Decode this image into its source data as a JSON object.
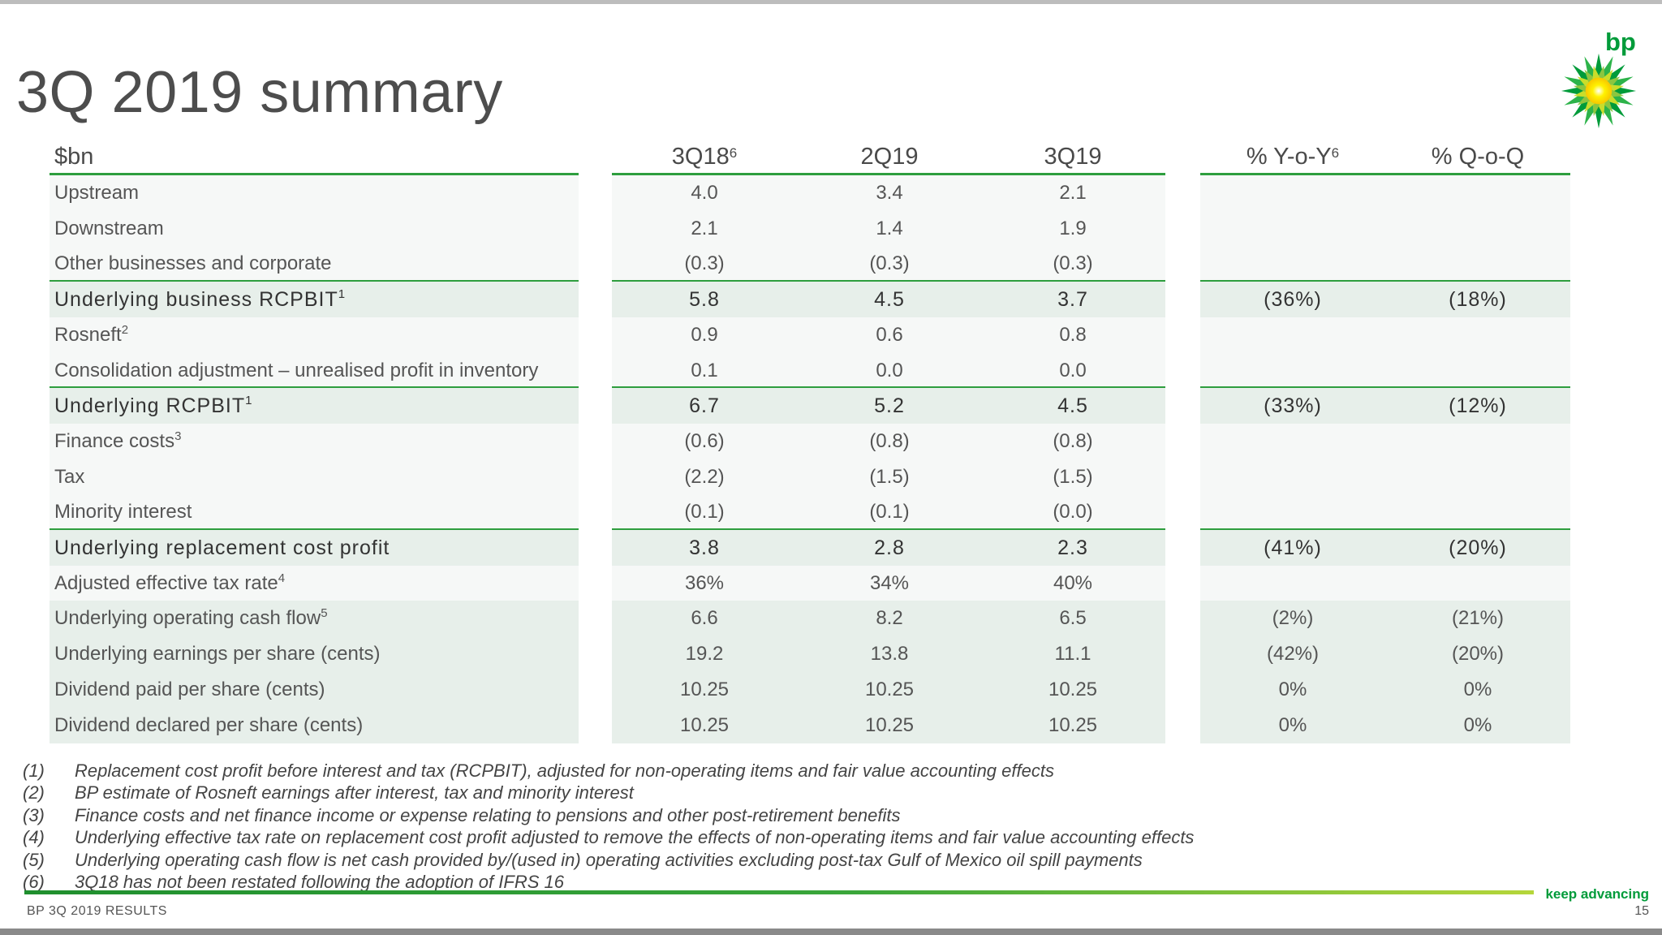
{
  "slide": {
    "title": "3Q 2019 summary",
    "logo_text": "bp",
    "footer_left": "BP 3Q 2019 RESULTS",
    "tagline": "keep advancing",
    "page_number": "15"
  },
  "table": {
    "headers": {
      "unit": "$bn",
      "c1": "3Q18",
      "c1_sup": "6",
      "c2": "2Q19",
      "c3": "3Q19",
      "c4": "% Y-o-Y",
      "c4_sup": "6",
      "c5": "% Q-o-Q"
    },
    "rows": [
      {
        "label": "Upstream",
        "sup": "",
        "v1": "4.0",
        "v2": "3.4",
        "v3": "2.1",
        "yoy": "",
        "qoq": ""
      },
      {
        "label": "Downstream",
        "sup": "",
        "v1": "2.1",
        "v2": "1.4",
        "v3": "1.9",
        "yoy": "",
        "qoq": ""
      },
      {
        "label": "Other businesses and corporate",
        "sup": "",
        "v1": "(0.3)",
        "v2": "(0.3)",
        "v3": "(0.3)",
        "yoy": "",
        "qoq": ""
      },
      {
        "label": "Underlying business RCPBIT",
        "sup": "1",
        "v1": "5.8",
        "v2": "4.5",
        "v3": "3.7",
        "yoy": "(36%)",
        "qoq": "(18%)"
      },
      {
        "label": "Rosneft",
        "sup": "2",
        "v1": "0.9",
        "v2": "0.6",
        "v3": "0.8",
        "yoy": "",
        "qoq": ""
      },
      {
        "label": "Consolidation adjustment – unrealised profit in inventory",
        "sup": "",
        "v1": "0.1",
        "v2": "0.0",
        "v3": "0.0",
        "yoy": "",
        "qoq": ""
      },
      {
        "label": "Underlying RCPBIT",
        "sup": "1",
        "v1": "6.7",
        "v2": "5.2",
        "v3": "4.5",
        "yoy": "(33%)",
        "qoq": "(12%)"
      },
      {
        "label": "Finance costs",
        "sup": "3",
        "v1": "(0.6)",
        "v2": "(0.8)",
        "v3": "(0.8)",
        "yoy": "",
        "qoq": ""
      },
      {
        "label": "Tax",
        "sup": "",
        "v1": "(2.2)",
        "v2": "(1.5)",
        "v3": "(1.5)",
        "yoy": "",
        "qoq": ""
      },
      {
        "label": "Minority interest",
        "sup": "",
        "v1": "(0.1)",
        "v2": "(0.1)",
        "v3": "(0.0)",
        "yoy": "",
        "qoq": ""
      },
      {
        "label": "Underlying replacement cost profit",
        "sup": "",
        "v1": "3.8",
        "v2": "2.8",
        "v3": "2.3",
        "yoy": "(41%)",
        "qoq": "(20%)"
      },
      {
        "label": "Adjusted effective tax rate",
        "sup": "4",
        "v1": "36%",
        "v2": "34%",
        "v3": "40%",
        "yoy": "",
        "qoq": ""
      },
      {
        "label": "Underlying operating cash flow",
        "sup": "5",
        "v1": "6.6",
        "v2": "8.2",
        "v3": "6.5",
        "yoy": "(2%)",
        "qoq": "(21%)"
      },
      {
        "label": "Underlying earnings per share (cents)",
        "sup": "",
        "v1": "19.2",
        "v2": "13.8",
        "v3": "11.1",
        "yoy": "(42%)",
        "qoq": "(20%)"
      },
      {
        "label": "Dividend paid per share (cents)",
        "sup": "",
        "v1": "10.25",
        "v2": "10.25",
        "v3": "10.25",
        "yoy": "0%",
        "qoq": "0%"
      },
      {
        "label": "Dividend declared per share (cents)",
        "sup": "",
        "v1": "10.25",
        "v2": "10.25",
        "v3": "10.25",
        "yoy": "0%",
        "qoq": "0%"
      }
    ]
  },
  "footnotes": [
    {
      "n": "(1)",
      "text": "Replacement cost profit before interest and tax (RCPBIT), adjusted for non-operating items and fair value accounting effects"
    },
    {
      "n": "(2)",
      "text": "BP estimate of Rosneft earnings after interest, tax and minority interest"
    },
    {
      "n": "(3)",
      "text": "Finance costs and net finance income or expense relating to pensions and other post-retirement benefits"
    },
    {
      "n": "(4)",
      "text": "Underlying effective tax rate on replacement cost profit adjusted to remove the effects of non-operating items and fair value accounting effects"
    },
    {
      "n": "(5)",
      "text": "Underlying operating cash flow is net cash provided by/(used in) operating activities excluding post-tax Gulf of Mexico oil spill payments"
    },
    {
      "n": "(6)",
      "text": "3Q18 has not been restated following the adoption of IFRS 16"
    }
  ]
}
